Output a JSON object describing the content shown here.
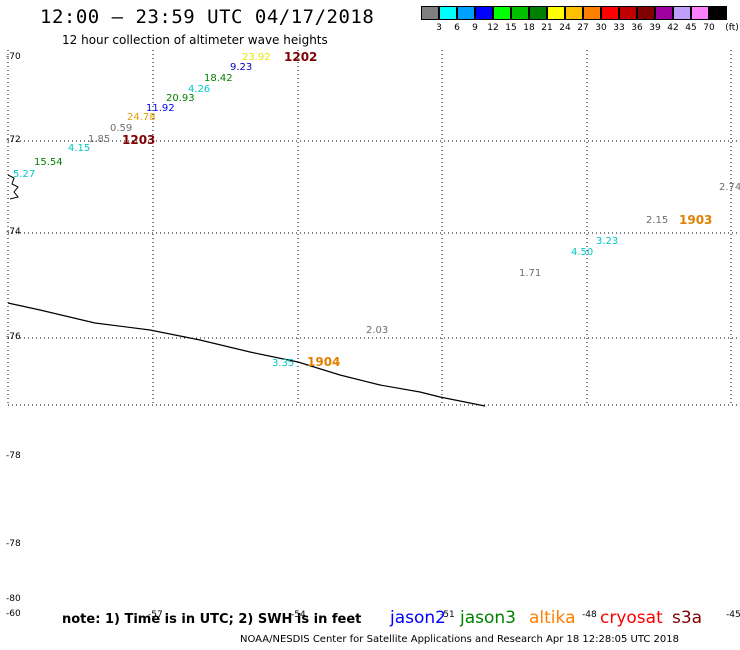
{
  "header": {
    "title": "12:00 — 23:59 UTC 04/17/2018",
    "subtitle": "12 hour collection of altimeter wave heights"
  },
  "legend": {
    "unit": "(ft)",
    "swatches": [
      {
        "color": "#808080",
        "label": "3"
      },
      {
        "color": "#00ffff",
        "label": "6"
      },
      {
        "color": "#00a0ff",
        "label": "9"
      },
      {
        "color": "#0000ff",
        "label": "12"
      },
      {
        "color": "#00ff00",
        "label": "15"
      },
      {
        "color": "#00c000",
        "label": "18"
      },
      {
        "color": "#008000",
        "label": "21"
      },
      {
        "color": "#ffff00",
        "label": "24"
      },
      {
        "color": "#ffc000",
        "label": "27"
      },
      {
        "color": "#ff8000",
        "label": "30"
      },
      {
        "color": "#ff0000",
        "label": "33"
      },
      {
        "color": "#c00000",
        "label": "36"
      },
      {
        "color": "#800000",
        "label": "39"
      },
      {
        "color": "#a000a0",
        "label": "42"
      },
      {
        "color": "#c0a0ff",
        "label": "45"
      },
      {
        "color": "#ff80ff",
        "label": "70"
      },
      {
        "color": "#000000",
        "label": ""
      }
    ]
  },
  "latitude_labels": [
    "-70",
    "-72",
    "-74",
    "-76",
    "-78",
    "-78",
    "-80",
    "-60"
  ],
  "longitude_labels": [
    "-57",
    "-54",
    "-51",
    "-48",
    "-45"
  ],
  "observations": [
    {
      "text": "23.92",
      "color": "#e8e800"
    },
    {
      "text": "9.23",
      "color": "#0000c0"
    },
    {
      "text": "18.42",
      "color": "#008000"
    },
    {
      "text": "4.26",
      "color": "#00c8c8"
    },
    {
      "text": "20.93",
      "color": "#008000"
    },
    {
      "text": "11.92",
      "color": "#0000ff"
    },
    {
      "text": "24.78",
      "color": "#e0a000"
    },
    {
      "text": "0.59",
      "color": "#707070"
    },
    {
      "text": "1.85",
      "color": "#707070"
    },
    {
      "text": "4.15",
      "color": "#00c8c8"
    },
    {
      "text": "15.54",
      "color": "#008000"
    },
    {
      "text": "5.27",
      "color": "#00c8c8"
    },
    {
      "text": "2.74",
      "color": "#707070"
    },
    {
      "text": "2.15",
      "color": "#707070"
    },
    {
      "text": "3.23",
      "color": "#00c8c8"
    },
    {
      "text": "4.50",
      "color": "#00c8c8"
    },
    {
      "text": "1.71",
      "color": "#707070"
    },
    {
      "text": "2.03",
      "color": "#707070"
    },
    {
      "text": "3.35",
      "color": "#00c8c8"
    }
  ],
  "passes": [
    {
      "text": "1202",
      "color": "#800000"
    },
    {
      "text": "1203",
      "color": "#800000"
    },
    {
      "text": "1903",
      "color": "#e08000"
    },
    {
      "text": "1904",
      "color": "#e08000"
    }
  ],
  "footer": {
    "note": "note: 1) Time is in UTC; 2) SWH is in feet",
    "satellites": [
      {
        "name": "jason2",
        "color": "#0000ff"
      },
      {
        "name": "jason3",
        "color": "#008000"
      },
      {
        "name": "altika",
        "color": "#ff8000"
      },
      {
        "name": "cryosat",
        "color": "#ff0000"
      },
      {
        "name": "s3a",
        "color": "#800000"
      }
    ],
    "credit": "NOAA/NESDIS Center for Satellite Applications and Research    Apr 18 12:28:05 UTC 2018"
  }
}
